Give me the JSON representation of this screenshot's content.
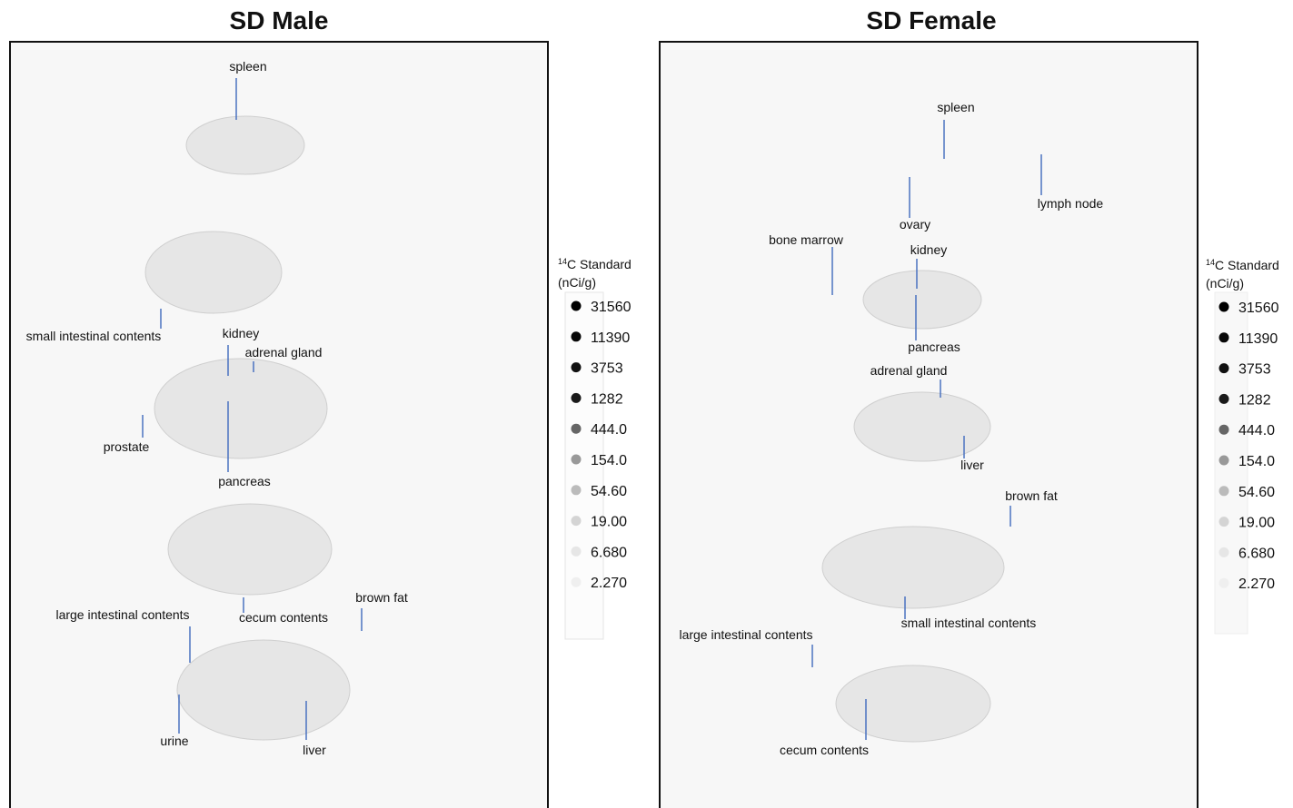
{
  "panels": [
    {
      "title": "SD Male",
      "labels": [
        "spleen",
        "small intestinal contents",
        "kidney",
        "adrenal gland",
        "prostate",
        "pancreas",
        "large intestinal contents",
        "cecum contents",
        "brown fat",
        "urine",
        "liver"
      ],
      "legend": {
        "sup": "14",
        "title": "C Standard",
        "unit": "(nCi/g)",
        "values": [
          "31560",
          "11390",
          "3753",
          "1282",
          "444.0",
          "154.0",
          "54.60",
          "19.00",
          "6.680",
          "2.270"
        ]
      }
    },
    {
      "title": "SD Female",
      "labels": [
        "spleen",
        "lymph node",
        "ovary",
        "bone marrow",
        "kidney",
        "pancreas",
        "adrenal gland",
        "liver",
        "brown fat",
        "small intestinal contents",
        "large intestinal contents",
        "cecum contents"
      ],
      "legend": {
        "sup": "14",
        "title": "C Standard",
        "unit": "(nCi/g)",
        "values": [
          "31560",
          "11390",
          "3753",
          "1282",
          "444.0",
          "154.0",
          "54.60",
          "19.00",
          "6.680",
          "2.270"
        ]
      }
    }
  ]
}
